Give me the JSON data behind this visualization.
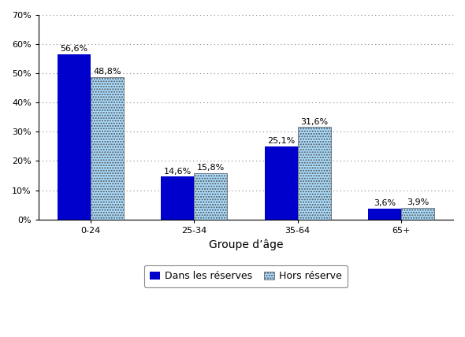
{
  "categories": [
    "0-24",
    "25-34",
    "35-64",
    "65+"
  ],
  "series": [
    {
      "label": "Dans les réserves",
      "values": [
        56.6,
        14.6,
        25.1,
        3.6
      ],
      "color": "#0000CC"
    },
    {
      "label": "Hors réserve",
      "values": [
        48.8,
        15.8,
        31.6,
        3.9
      ],
      "color": "#AADDFF"
    }
  ],
  "xlabel": "Groupe d’âge",
  "ylim": [
    0,
    70
  ],
  "yticks": [
    0,
    10,
    20,
    30,
    40,
    50,
    60,
    70
  ],
  "ytick_labels": [
    "0%",
    "10%",
    "20%",
    "30%",
    "40%",
    "50%",
    "60%",
    "70%"
  ],
  "bar_width": 0.32,
  "background_color": "#FFFFFF",
  "grid_color": "#888888",
  "label_fontsize": 8,
  "axis_label_fontsize": 10,
  "legend_fontsize": 9
}
